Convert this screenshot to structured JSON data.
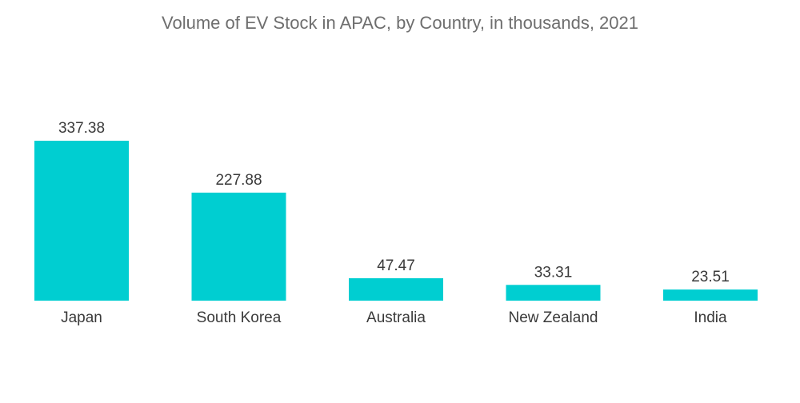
{
  "chart_data": {
    "type": "bar",
    "title": "Volume of EV Stock in APAC, by Country, in thousands, 2021",
    "categories": [
      "Japan",
      "South Korea",
      "Australia",
      "New Zealand",
      "India"
    ],
    "values": [
      337.38,
      227.88,
      47.47,
      33.31,
      23.51
    ],
    "value_labels": [
      "337.38",
      "227.88",
      "47.47",
      "33.31",
      "23.51"
    ],
    "xlabel": "",
    "ylabel": "",
    "ylim": [
      0,
      337.38
    ],
    "grid": false,
    "bar_color": "#00ced1"
  }
}
